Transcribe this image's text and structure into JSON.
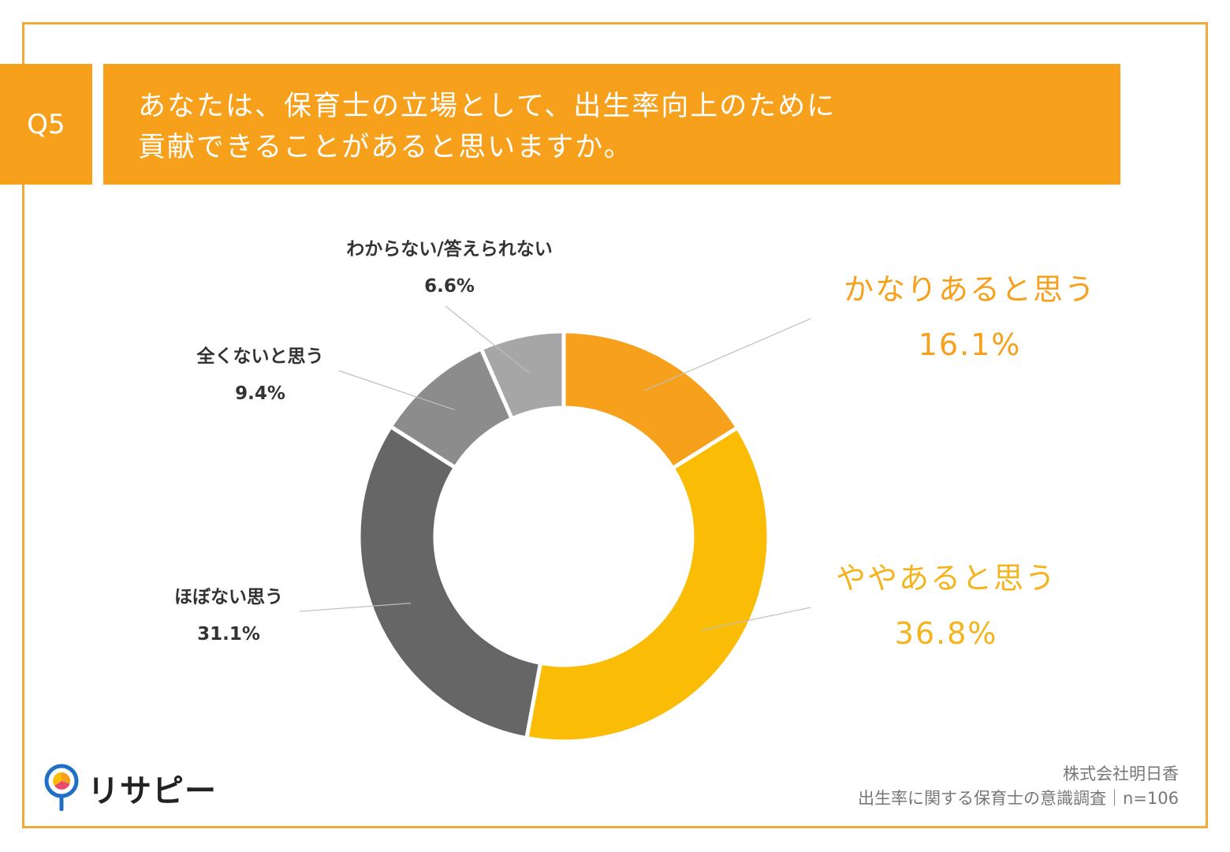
{
  "header": {
    "question_no": "Q5",
    "title_line1": "あなたは、保育士の立場として、出生率向上のために",
    "title_line2": "貢献できることがあると思いますか。"
  },
  "chart_data": {
    "type": "pie",
    "style": "donut",
    "title": "あなたは、保育士の立場として、出生率向上のために貢献できることがあると思いますか。",
    "unit": "%",
    "slices": [
      {
        "label": "かなりあると思う",
        "value": 16.1,
        "value_text": "16.1%",
        "color": "#f7a01b",
        "label_color": "#f7a01b"
      },
      {
        "label": "ややあると思う",
        "value": 36.8,
        "value_text": "36.8%",
        "color": "#fbbc05",
        "label_color": "#f5b31c"
      },
      {
        "label": "ほぼない思う",
        "value": 31.1,
        "value_text": "31.1%",
        "color": "#666666",
        "label_color": "#333333"
      },
      {
        "label": "全くないと思う",
        "value": 9.4,
        "value_text": "9.4%",
        "color": "#8c8c8c",
        "label_color": "#333333"
      },
      {
        "label": "わからない/答えられない",
        "value": 6.6,
        "value_text": "6.6%",
        "color": "#a6a6a6",
        "label_color": "#333333"
      }
    ]
  },
  "footer": {
    "logo_text": "リサピー",
    "company": "株式会社明日香",
    "survey": "出生率に関する保育士の意識調査｜n=106"
  },
  "colors": {
    "accent": "#f7a01b",
    "frame": "#f2a93b"
  }
}
